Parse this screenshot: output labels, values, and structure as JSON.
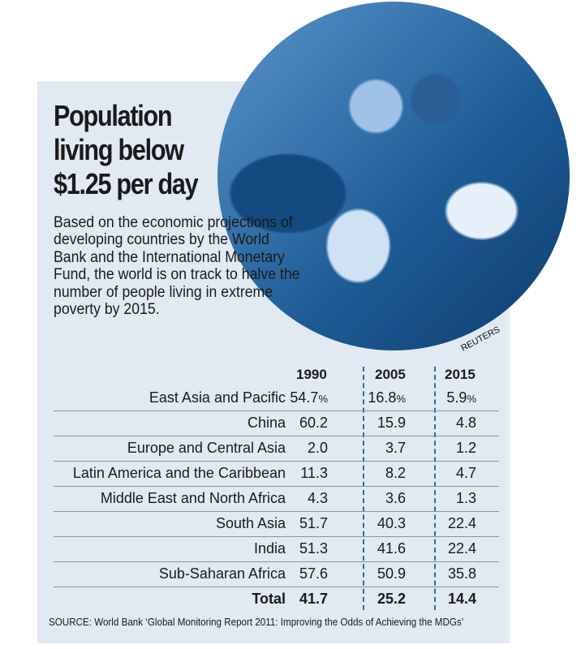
{
  "title": "Population living below $1.25 per day",
  "description": "Based on the economic projections of developing countries by the World Bank and the International Monetary Fund, the world is on track to halve the number of people living in extreme poverty by 2015.",
  "photo_credit": "REUTERS",
  "source": "SOURCE: World Bank ‘Global Monitoring Report 2011: Improving the Odds of Achieving the MDGs’",
  "colors": {
    "panel": "#e1e9f3",
    "divider": "#2a6aa8",
    "photo_tint": "#1d5a94"
  },
  "chart_data": {
    "type": "table",
    "columns": [
      "1990",
      "2005",
      "2015"
    ],
    "rows": [
      {
        "label": "East Asia and Pacific",
        "values": [
          "54.7",
          "16.8",
          "5.9"
        ],
        "unit": "%"
      },
      {
        "label": "China",
        "values": [
          "60.2",
          "15.9",
          "4.8"
        ]
      },
      {
        "label": "Europe and Central Asia",
        "values": [
          "2.0",
          "3.7",
          "1.2"
        ]
      },
      {
        "label": "Latin America and the Caribbean",
        "values": [
          "11.3",
          "8.2",
          "4.7"
        ]
      },
      {
        "label": "Middle East and North Africa",
        "values": [
          "4.3",
          "3.6",
          "1.3"
        ]
      },
      {
        "label": "South Asia",
        "values": [
          "51.7",
          "40.3",
          "22.4"
        ]
      },
      {
        "label": "India",
        "values": [
          "51.3",
          "41.6",
          "22.4"
        ]
      },
      {
        "label": "Sub-Saharan Africa",
        "values": [
          "57.6",
          "50.9",
          "35.8"
        ]
      },
      {
        "label": "Total",
        "values": [
          "41.7",
          "25.2",
          "14.4"
        ]
      }
    ]
  }
}
